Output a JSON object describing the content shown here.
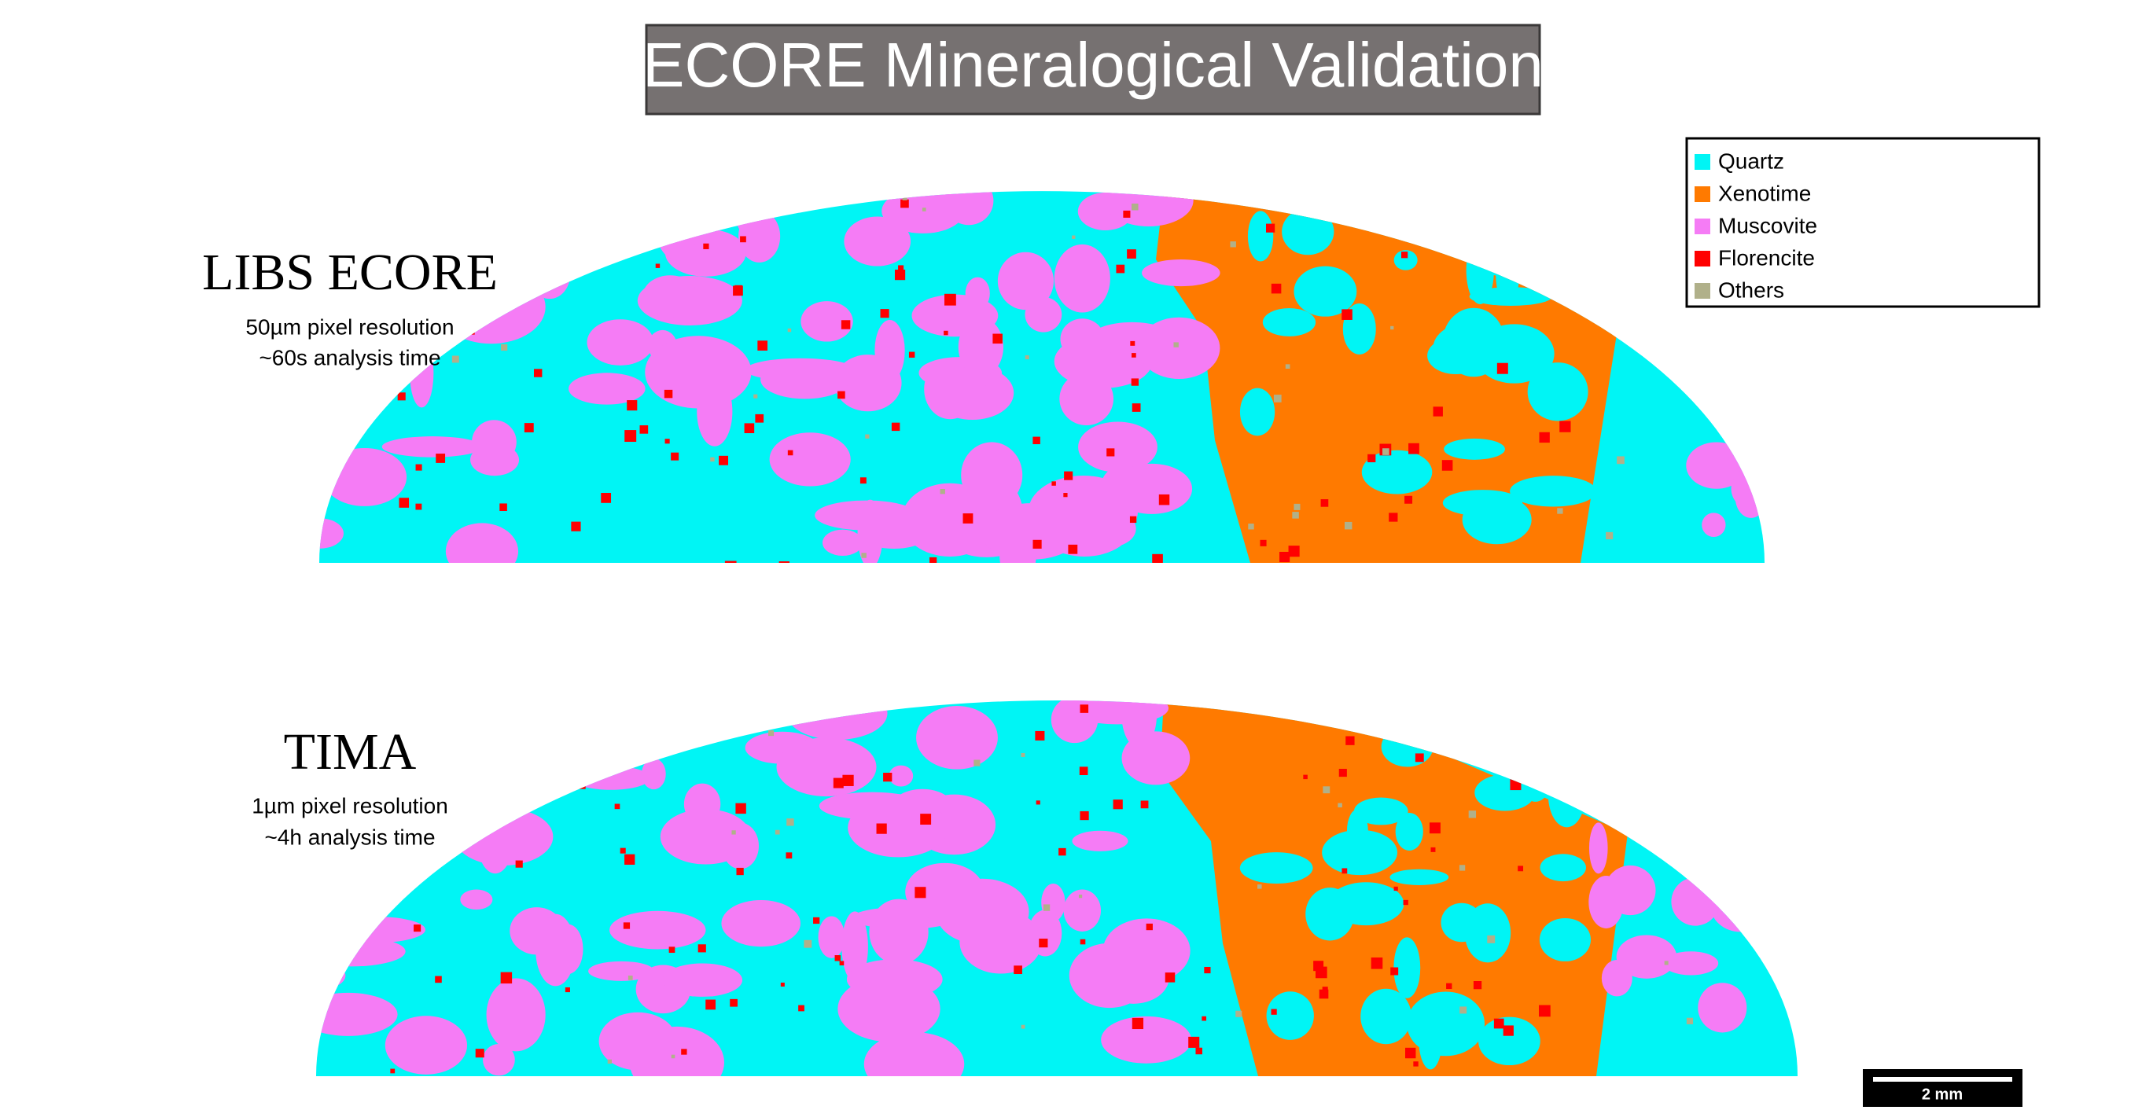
{
  "title": "ECORE Mineralogical Validation",
  "legend": [
    {
      "label": "Quartz",
      "color": "#00f5f5"
    },
    {
      "label": "Xenotime",
      "color": "#ff7a00"
    },
    {
      "label": "Muscovite",
      "color": "#f57cf5"
    },
    {
      "label": "Florencite",
      "color": "#ff0000"
    },
    {
      "label": "Others",
      "color": "#b0b08a"
    }
  ],
  "panels": [
    {
      "label": "LIBS ECORE",
      "lines": [
        "50µm pixel resolution",
        "~60s analysis time"
      ]
    },
    {
      "label": "TIMA",
      "lines": [
        "1µm pixel resolution",
        "~4h analysis time"
      ]
    }
  ],
  "scale_bar": "2 mm"
}
